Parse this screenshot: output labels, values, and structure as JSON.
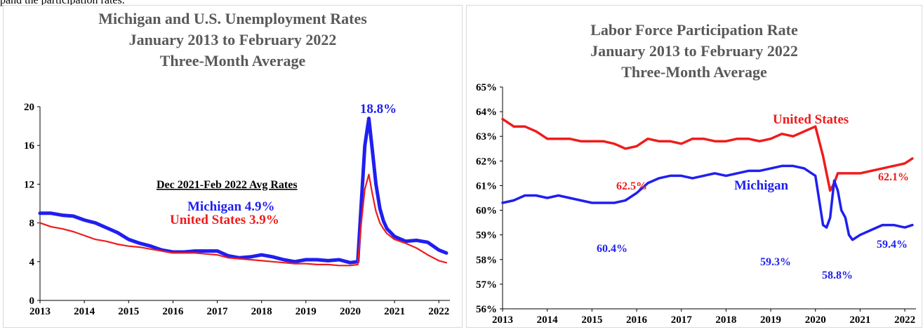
{
  "page": {
    "top_fragment": "pand the participation rates."
  },
  "colors": {
    "michigan": "#1f1ff0",
    "us": "#ef1c1c",
    "title": "#595959",
    "axis": "#000000"
  },
  "chart_data": [
    {
      "type": "line",
      "title_lines": [
        "Michigan and U.S. Unemployment Rates",
        "January 2013 to February 2022",
        "Three-Month Average"
      ],
      "x_ticks": [
        "2013",
        "2014",
        "2015",
        "2016",
        "2017",
        "2018",
        "2019",
        "2020",
        "2021",
        "2022"
      ],
      "xlim": [
        2013,
        2022.25
      ],
      "ylim": [
        0,
        20
      ],
      "y_ticks": [
        0,
        4,
        8,
        12,
        16,
        20
      ],
      "series": [
        {
          "name": "Michigan",
          "color": "#1f1ff0",
          "x": [
            2013,
            2013.25,
            2013.5,
            2013.75,
            2014,
            2014.25,
            2014.5,
            2014.75,
            2015,
            2015.25,
            2015.5,
            2015.75,
            2016,
            2016.25,
            2016.5,
            2016.75,
            2017,
            2017.25,
            2017.5,
            2017.75,
            2018,
            2018.25,
            2018.5,
            2018.75,
            2019,
            2019.25,
            2019.5,
            2019.75,
            2020,
            2020.17,
            2020.25,
            2020.33,
            2020.42,
            2020.5,
            2020.58,
            2020.67,
            2020.75,
            2020.83,
            2021,
            2021.25,
            2021.5,
            2021.75,
            2022,
            2022.17
          ],
          "y": [
            9.0,
            9.0,
            8.8,
            8.7,
            8.3,
            8.0,
            7.5,
            7.0,
            6.3,
            5.9,
            5.6,
            5.2,
            5.0,
            5.0,
            5.1,
            5.1,
            5.1,
            4.6,
            4.4,
            4.5,
            4.7,
            4.5,
            4.2,
            4.0,
            4.2,
            4.2,
            4.1,
            4.2,
            3.9,
            4.0,
            10.0,
            16.0,
            18.8,
            15.5,
            12.0,
            9.5,
            8.2,
            7.4,
            6.6,
            6.1,
            6.2,
            6.0,
            5.2,
            4.9
          ]
        },
        {
          "name": "United States",
          "color": "#ef1c1c",
          "x": [
            2013,
            2013.25,
            2013.5,
            2013.75,
            2014,
            2014.25,
            2014.5,
            2014.75,
            2015,
            2015.25,
            2015.5,
            2015.75,
            2016,
            2016.25,
            2016.5,
            2016.75,
            2017,
            2017.25,
            2017.5,
            2017.75,
            2018,
            2018.25,
            2018.5,
            2018.75,
            2019,
            2019.25,
            2019.5,
            2019.75,
            2020,
            2020.17,
            2020.25,
            2020.33,
            2020.42,
            2020.5,
            2020.58,
            2020.67,
            2020.75,
            2020.83,
            2021,
            2021.25,
            2021.5,
            2021.75,
            2022,
            2022.17
          ],
          "y": [
            8.0,
            7.6,
            7.4,
            7.1,
            6.7,
            6.3,
            6.1,
            5.8,
            5.6,
            5.5,
            5.3,
            5.1,
            4.9,
            4.9,
            4.9,
            4.8,
            4.7,
            4.4,
            4.3,
            4.2,
            4.1,
            4.0,
            3.9,
            3.8,
            3.8,
            3.7,
            3.7,
            3.6,
            3.6,
            3.7,
            8.0,
            11.5,
            13.0,
            11.0,
            9.2,
            8.0,
            7.4,
            6.9,
            6.3,
            5.9,
            5.4,
            4.7,
            4.1,
            3.9
          ]
        }
      ],
      "annotations": [
        {
          "text": "18.8%",
          "color": "#1f1ff0"
        },
        {
          "text": "Dec 2021-Feb 2022 Avg Rates",
          "color": "#000000"
        },
        {
          "text": "Michigan 4.9%",
          "color": "#1f1ff0"
        },
        {
          "text": "United States 3.9%",
          "color": "#ef1c1c"
        }
      ]
    },
    {
      "type": "line",
      "title_lines": [
        "Labor Force Participation Rate",
        "January 2013 to February 2022",
        "Three-Month Average"
      ],
      "x_ticks": [
        "2013",
        "2014",
        "2015",
        "2016",
        "2017",
        "2018",
        "2019",
        "2020",
        "2021",
        "2022"
      ],
      "xlim": [
        2013,
        2022.25
      ],
      "ylim": [
        56,
        65
      ],
      "y_ticks": [
        "56%",
        "57%",
        "58%",
        "59%",
        "60%",
        "61%",
        "62%",
        "63%",
        "64%",
        "65%"
      ],
      "series": [
        {
          "name": "United States",
          "color": "#ef1c1c",
          "x": [
            2013,
            2013.25,
            2013.5,
            2013.75,
            2014,
            2014.25,
            2014.5,
            2014.75,
            2015,
            2015.25,
            2015.5,
            2015.75,
            2016,
            2016.25,
            2016.5,
            2016.75,
            2017,
            2017.25,
            2017.5,
            2017.75,
            2018,
            2018.25,
            2018.5,
            2018.75,
            2019,
            2019.25,
            2019.5,
            2019.75,
            2020,
            2020.17,
            2020.25,
            2020.33,
            2020.42,
            2020.5,
            2020.58,
            2020.67,
            2020.75,
            2020.83,
            2021,
            2021.25,
            2021.5,
            2021.75,
            2022,
            2022.17
          ],
          "y": [
            63.7,
            63.4,
            63.4,
            63.2,
            62.9,
            62.9,
            62.9,
            62.8,
            62.8,
            62.8,
            62.7,
            62.5,
            62.6,
            62.9,
            62.8,
            62.8,
            62.7,
            62.9,
            62.9,
            62.8,
            62.8,
            62.9,
            62.9,
            62.8,
            62.9,
            63.1,
            63.0,
            63.2,
            63.4,
            62.2,
            61.5,
            60.8,
            61.1,
            61.5,
            61.5,
            61.5,
            61.5,
            61.5,
            61.5,
            61.6,
            61.7,
            61.8,
            61.9,
            62.1
          ]
        },
        {
          "name": "Michigan",
          "color": "#1f1ff0",
          "x": [
            2013,
            2013.25,
            2013.5,
            2013.75,
            2014,
            2014.25,
            2014.5,
            2014.75,
            2015,
            2015.25,
            2015.5,
            2015.75,
            2016,
            2016.25,
            2016.5,
            2016.75,
            2017,
            2017.25,
            2017.5,
            2017.75,
            2018,
            2018.25,
            2018.5,
            2018.75,
            2019,
            2019.25,
            2019.5,
            2019.75,
            2020,
            2020.17,
            2020.25,
            2020.33,
            2020.42,
            2020.5,
            2020.58,
            2020.67,
            2020.75,
            2020.83,
            2021,
            2021.25,
            2021.5,
            2021.75,
            2022,
            2022.17
          ],
          "y": [
            60.3,
            60.4,
            60.6,
            60.6,
            60.5,
            60.6,
            60.5,
            60.4,
            60.3,
            60.3,
            60.3,
            60.4,
            60.7,
            61.1,
            61.3,
            61.4,
            61.4,
            61.3,
            61.4,
            61.5,
            61.4,
            61.5,
            61.6,
            61.6,
            61.7,
            61.8,
            61.8,
            61.7,
            61.4,
            59.4,
            59.3,
            59.7,
            61.2,
            60.8,
            60.0,
            59.7,
            59.0,
            58.8,
            59.0,
            59.2,
            59.4,
            59.4,
            59.3,
            59.4
          ]
        }
      ],
      "annotations": [
        {
          "text": "United States",
          "color": "#ef1c1c"
        },
        {
          "text": "Michigan",
          "color": "#1f1ff0"
        },
        {
          "text": "62.5%",
          "color": "#ef1c1c"
        },
        {
          "text": "62.1%",
          "color": "#ef1c1c"
        },
        {
          "text": "60.4%",
          "color": "#1f1ff0"
        },
        {
          "text": "59.3%",
          "color": "#1f1ff0"
        },
        {
          "text": "58.8%",
          "color": "#1f1ff0"
        },
        {
          "text": "59.4%",
          "color": "#1f1ff0"
        }
      ]
    }
  ]
}
